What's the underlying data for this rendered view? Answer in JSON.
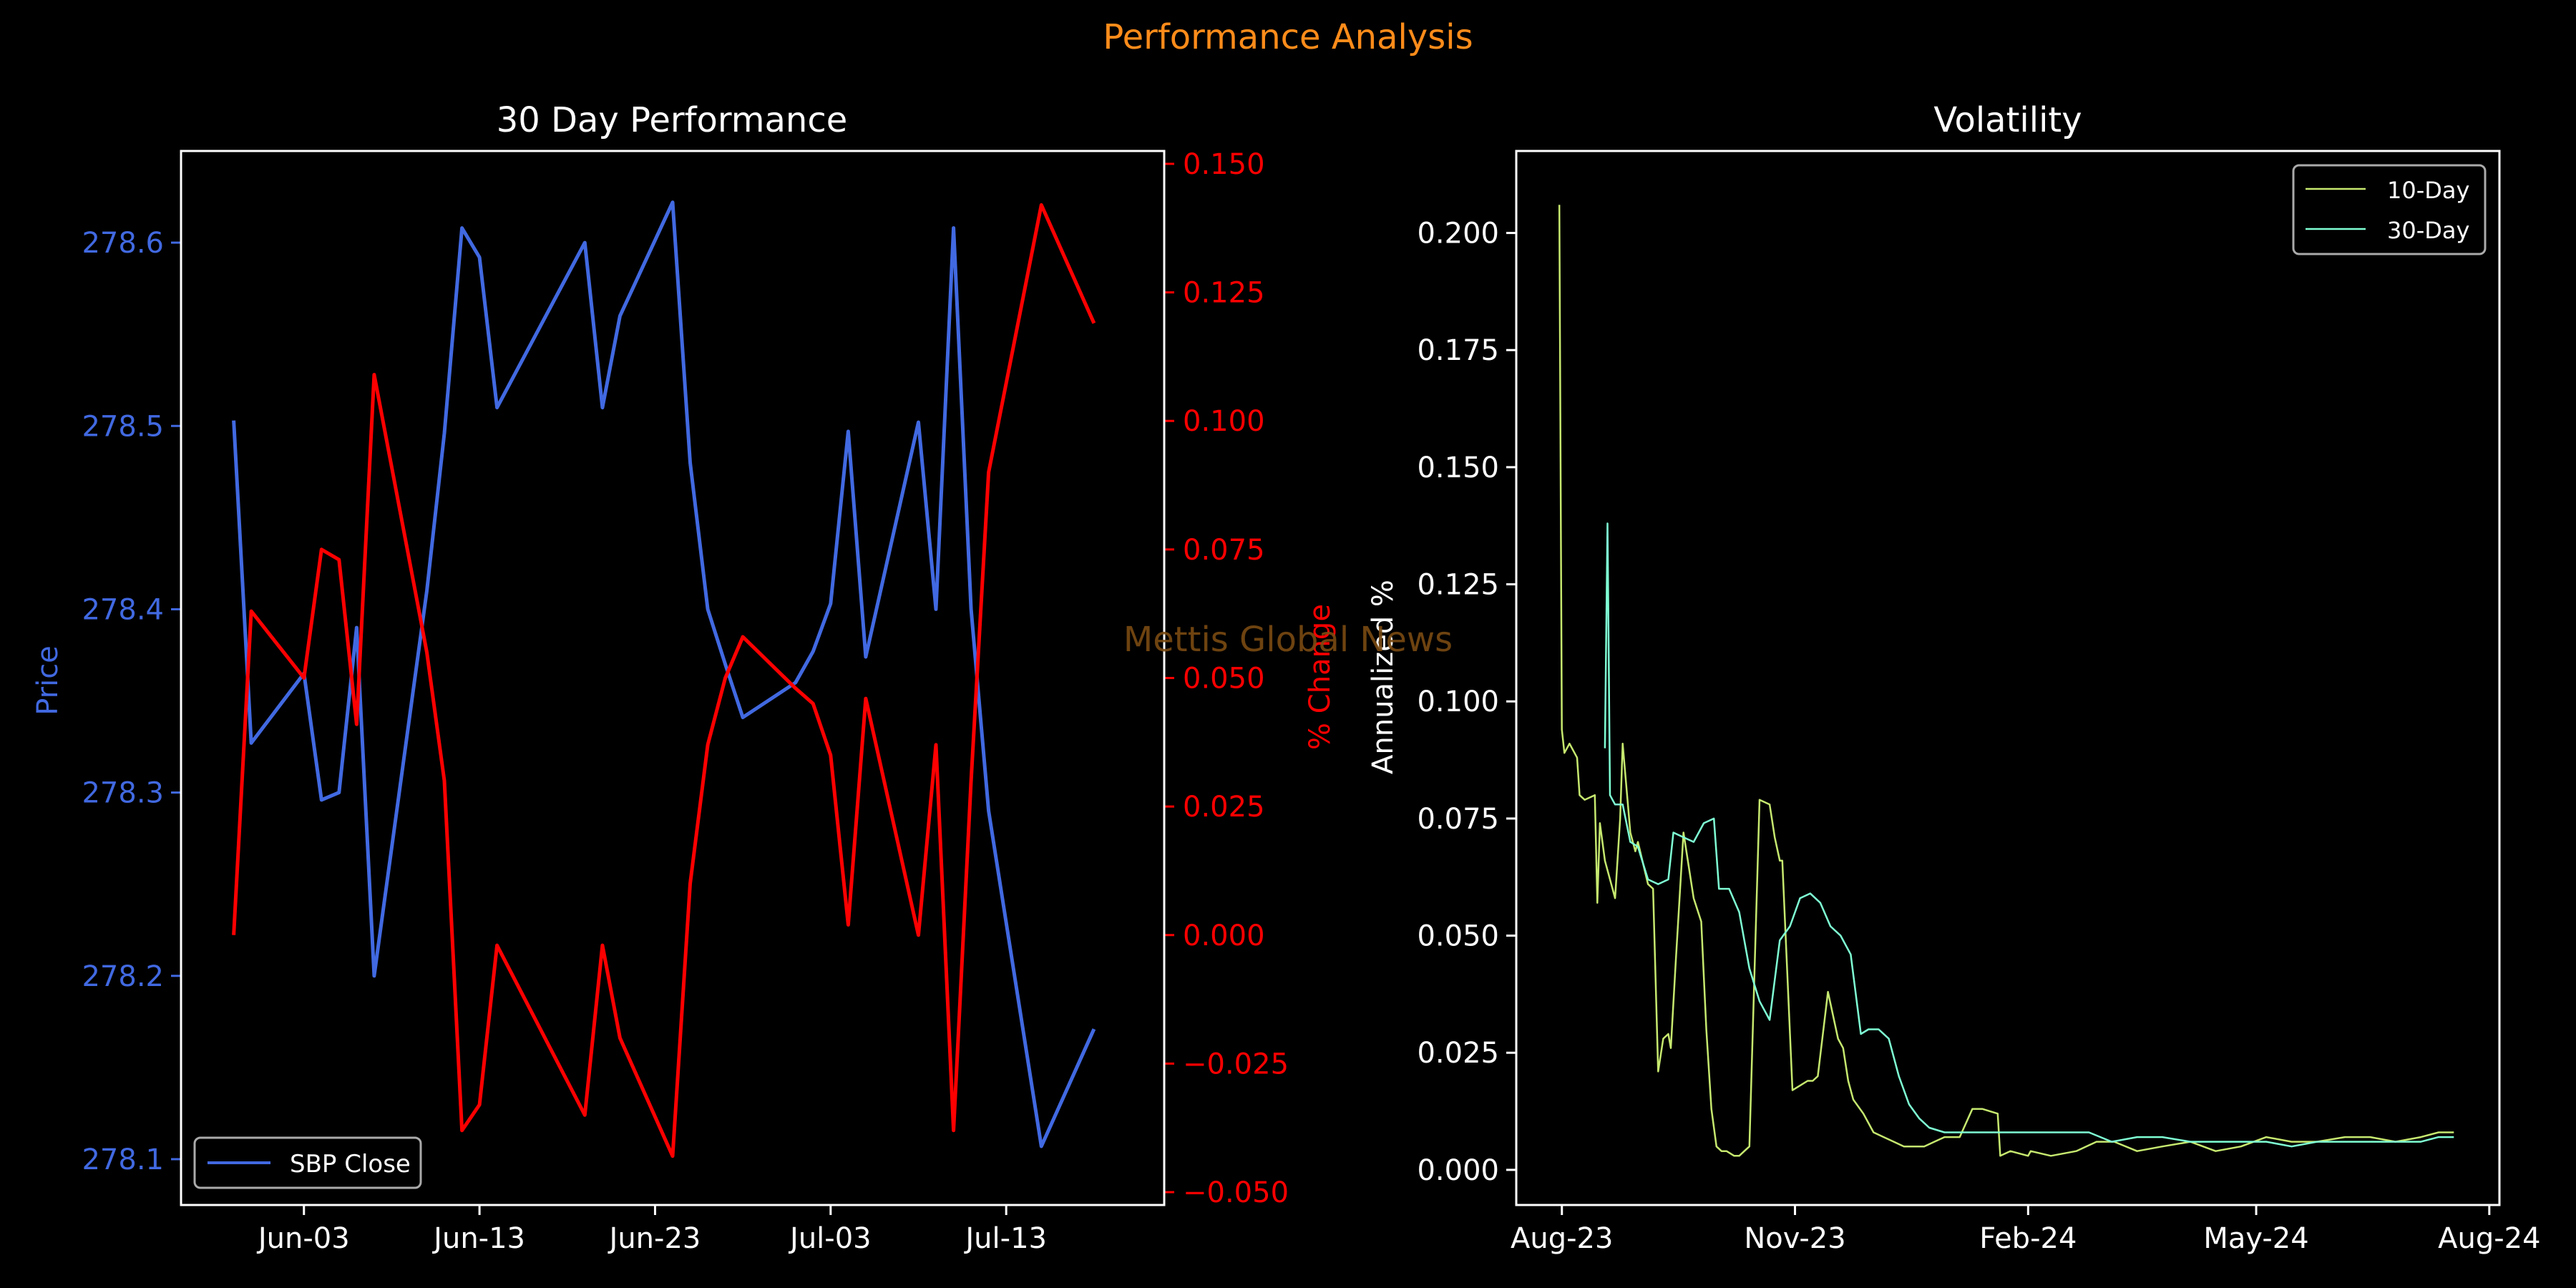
{
  "figure": {
    "title": "Performance Analysis",
    "watermark": "Mettis Global News",
    "background": "#000000",
    "title_color": "#ff8c1a",
    "watermark_color": "#7a4a12"
  },
  "chart_data": [
    {
      "type": "line",
      "title": "30 Day Performance",
      "xlabel": "",
      "ylabel": "Price",
      "y2label": "% Change",
      "x_tick_labels": [
        "Jun-03",
        "Jun-13",
        "Jun-23",
        "Jul-03",
        "Jul-13"
      ],
      "x_tick_dates": [
        "2024-06-03",
        "2024-06-13",
        "2024-06-23",
        "2024-07-03",
        "2024-07-13"
      ],
      "xlim": [
        "2024-05-27",
        "2024-07-22"
      ],
      "ylim": [
        278.075,
        278.65
      ],
      "y_ticks": [
        278.1,
        278.2,
        278.3,
        278.4,
        278.5,
        278.6
      ],
      "y2lim": [
        -0.0525,
        0.1525
      ],
      "y2_ticks": [
        -0.05,
        -0.025,
        0.0,
        0.025,
        0.05,
        0.075,
        0.1,
        0.125,
        0.15
      ],
      "y2_tick_labels": [
        "−0.050",
        "−0.025",
        "0.000",
        "0.025",
        "0.050",
        "0.075",
        "0.100",
        "0.125",
        "0.150"
      ],
      "grid": false,
      "legend": {
        "position": "lower-left",
        "entries": [
          "SBP Close"
        ]
      },
      "series": [
        {
          "name": "SBP Close",
          "axis": "left",
          "color": "#4169e1",
          "x": [
            "2024-05-30",
            "2024-05-31",
            "2024-06-03",
            "2024-06-04",
            "2024-06-05",
            "2024-06-06",
            "2024-06-07",
            "2024-06-10",
            "2024-06-11",
            "2024-06-12",
            "2024-06-13",
            "2024-06-14",
            "2024-06-19",
            "2024-06-20",
            "2024-06-21",
            "2024-06-24",
            "2024-06-25",
            "2024-06-26",
            "2024-06-27",
            "2024-06-28",
            "2024-07-01",
            "2024-07-02",
            "2024-07-03",
            "2024-07-04",
            "2024-07-05",
            "2024-07-08",
            "2024-07-09",
            "2024-07-10",
            "2024-07-11",
            "2024-07-12",
            "2024-07-15",
            "2024-07-18"
          ],
          "values": [
            278.503,
            278.327,
            278.365,
            278.296,
            278.3,
            278.39,
            278.2,
            278.41,
            278.496,
            278.608,
            278.592,
            278.51,
            278.6,
            278.51,
            278.56,
            278.622,
            278.48,
            278.4,
            278.37,
            278.341,
            278.36,
            278.377,
            278.403,
            278.497,
            278.374,
            278.502,
            278.4,
            278.608,
            278.4,
            278.29,
            278.107,
            278.171
          ]
        },
        {
          "name": "% Change",
          "axis": "right",
          "color": "#ff0000",
          "x": [
            "2024-05-30",
            "2024-05-31",
            "2024-06-03",
            "2024-06-04",
            "2024-06-05",
            "2024-06-06",
            "2024-06-07",
            "2024-06-10",
            "2024-06-11",
            "2024-06-12",
            "2024-06-13",
            "2024-06-14",
            "2024-06-19",
            "2024-06-20",
            "2024-06-21",
            "2024-06-24",
            "2024-06-25",
            "2024-06-26",
            "2024-06-27",
            "2024-06-28",
            "2024-07-01",
            "2024-07-02",
            "2024-07-03",
            "2024-07-04",
            "2024-07-05",
            "2024-07-08",
            "2024-07-09",
            "2024-07-10",
            "2024-07-11",
            "2024-07-12",
            "2024-07-15",
            "2024-07-18"
          ],
          "values": [
            0.0,
            0.063,
            0.05,
            0.075,
            0.073,
            0.041,
            0.109,
            0.055,
            0.03,
            -0.038,
            -0.033,
            -0.002,
            -0.035,
            -0.002,
            -0.02,
            -0.043,
            0.01,
            0.037,
            0.05,
            0.058,
            0.048,
            0.045,
            0.035,
            0.002,
            0.046,
            0.0,
            0.037,
            -0.038,
            0.03,
            0.09,
            0.142,
            0.119
          ]
        }
      ]
    },
    {
      "type": "line",
      "title": "Volatility",
      "xlabel": "",
      "ylabel": "Annualized %",
      "x_tick_labels": [
        "Aug-23",
        "Nov-23",
        "Feb-24",
        "May-24",
        "Aug-24"
      ],
      "x_tick_dates": [
        "2023-08-01",
        "2023-11-01",
        "2024-02-01",
        "2024-05-01",
        "2024-08-01"
      ],
      "xlim": [
        "2023-07-14",
        "2024-08-05"
      ],
      "ylim": [
        -0.0075,
        0.2175
      ],
      "y_ticks": [
        0.0,
        0.025,
        0.05,
        0.075,
        0.1,
        0.125,
        0.15,
        0.175,
        0.2
      ],
      "y_tick_labels": [
        "0.000",
        "0.025",
        "0.050",
        "0.075",
        "0.100",
        "0.125",
        "0.150",
        "0.175",
        "0.200"
      ],
      "grid": false,
      "legend": {
        "position": "upper-right",
        "entries": [
          "10-Day",
          "30-Day"
        ]
      },
      "series": [
        {
          "name": "10-Day",
          "color": "#c6e86f",
          "x": [
            "2023-07-31",
            "2023-08-01",
            "2023-08-02",
            "2023-08-04",
            "2023-08-07",
            "2023-08-08",
            "2023-08-10",
            "2023-08-14",
            "2023-08-15",
            "2023-08-16",
            "2023-08-18",
            "2023-08-22",
            "2023-08-24",
            "2023-08-25",
            "2023-08-28",
            "2023-08-30",
            "2023-08-31",
            "2023-09-04",
            "2023-09-06",
            "2023-09-08",
            "2023-09-10",
            "2023-09-12",
            "2023-09-13",
            "2023-09-15",
            "2023-09-18",
            "2023-09-22",
            "2023-09-25",
            "2023-09-27",
            "2023-09-29",
            "2023-10-01",
            "2023-10-03",
            "2023-10-05",
            "2023-10-08",
            "2023-10-10",
            "2023-10-12",
            "2023-10-14",
            "2023-10-18",
            "2023-10-22",
            "2023-10-24",
            "2023-10-26",
            "2023-10-27",
            "2023-10-31",
            "2023-11-03",
            "2023-11-06",
            "2023-11-08",
            "2023-11-10",
            "2023-11-14",
            "2023-11-18",
            "2023-11-20",
            "2023-11-22",
            "2023-11-24",
            "2023-11-28",
            "2023-12-02",
            "2023-12-06",
            "2023-12-10",
            "2023-12-14",
            "2023-12-18",
            "2023-12-22",
            "2023-12-26",
            "2023-12-30",
            "2024-01-05",
            "2024-01-10",
            "2024-01-14",
            "2024-01-20",
            "2024-01-21",
            "2024-01-25",
            "2024-02-01",
            "2024-02-02",
            "2024-02-10",
            "2024-02-20",
            "2024-02-28",
            "2024-03-06",
            "2024-03-15",
            "2024-03-25",
            "2024-04-05",
            "2024-04-15",
            "2024-04-25",
            "2024-05-05",
            "2024-05-15",
            "2024-05-25",
            "2024-06-05",
            "2024-06-15",
            "2024-06-25",
            "2024-07-05",
            "2024-07-12",
            "2024-07-18"
          ],
          "values": [
            0.206,
            0.094,
            0.089,
            0.091,
            0.088,
            0.08,
            0.079,
            0.08,
            0.057,
            0.074,
            0.066,
            0.058,
            0.075,
            0.091,
            0.072,
            0.068,
            0.07,
            0.061,
            0.06,
            0.021,
            0.028,
            0.029,
            0.026,
            0.045,
            0.072,
            0.058,
            0.053,
            0.03,
            0.013,
            0.005,
            0.004,
            0.004,
            0.003,
            0.003,
            0.004,
            0.005,
            0.079,
            0.078,
            0.071,
            0.066,
            0.066,
            0.017,
            0.018,
            0.019,
            0.019,
            0.02,
            0.038,
            0.028,
            0.026,
            0.019,
            0.015,
            0.012,
            0.008,
            0.007,
            0.006,
            0.005,
            0.005,
            0.005,
            0.006,
            0.007,
            0.007,
            0.013,
            0.013,
            0.012,
            0.003,
            0.004,
            0.003,
            0.004,
            0.003,
            0.004,
            0.006,
            0.006,
            0.004,
            0.005,
            0.006,
            0.004,
            0.005,
            0.007,
            0.006,
            0.006,
            0.007,
            0.007,
            0.006,
            0.007,
            0.008,
            0.008
          ]
        },
        {
          "name": "30-Day",
          "color": "#7fffd4",
          "x": [
            "2023-08-18",
            "2023-08-19",
            "2023-08-20",
            "2023-08-22",
            "2023-08-25",
            "2023-08-28",
            "2023-08-31",
            "2023-09-04",
            "2023-09-08",
            "2023-09-12",
            "2023-09-14",
            "2023-09-18",
            "2023-09-22",
            "2023-09-26",
            "2023-09-30",
            "2023-10-02",
            "2023-10-06",
            "2023-10-10",
            "2023-10-14",
            "2023-10-18",
            "2023-10-22",
            "2023-10-26",
            "2023-10-30",
            "2023-11-03",
            "2023-11-07",
            "2023-11-11",
            "2023-11-15",
            "2023-11-19",
            "2023-11-23",
            "2023-11-27",
            "2023-11-30",
            "2023-12-04",
            "2023-12-08",
            "2023-12-12",
            "2023-12-16",
            "2023-12-20",
            "2023-12-24",
            "2023-12-30",
            "2024-01-06",
            "2024-01-12",
            "2024-01-20",
            "2024-01-28",
            "2024-02-05",
            "2024-02-15",
            "2024-02-25",
            "2024-03-05",
            "2024-03-15",
            "2024-03-25",
            "2024-04-05",
            "2024-04-15",
            "2024-04-25",
            "2024-05-05",
            "2024-05-15",
            "2024-05-25",
            "2024-06-05",
            "2024-06-15",
            "2024-06-25",
            "2024-07-05",
            "2024-07-12",
            "2024-07-18"
          ],
          "values": [
            0.09,
            0.138,
            0.08,
            0.078,
            0.078,
            0.07,
            0.069,
            0.062,
            0.061,
            0.062,
            0.072,
            0.071,
            0.07,
            0.074,
            0.075,
            0.06,
            0.06,
            0.055,
            0.043,
            0.036,
            0.032,
            0.049,
            0.052,
            0.058,
            0.059,
            0.057,
            0.052,
            0.05,
            0.046,
            0.029,
            0.03,
            0.03,
            0.028,
            0.02,
            0.014,
            0.011,
            0.009,
            0.008,
            0.008,
            0.008,
            0.008,
            0.008,
            0.008,
            0.008,
            0.008,
            0.006,
            0.007,
            0.007,
            0.006,
            0.006,
            0.006,
            0.006,
            0.005,
            0.006,
            0.006,
            0.006,
            0.006,
            0.006,
            0.007,
            0.007
          ]
        }
      ]
    }
  ]
}
